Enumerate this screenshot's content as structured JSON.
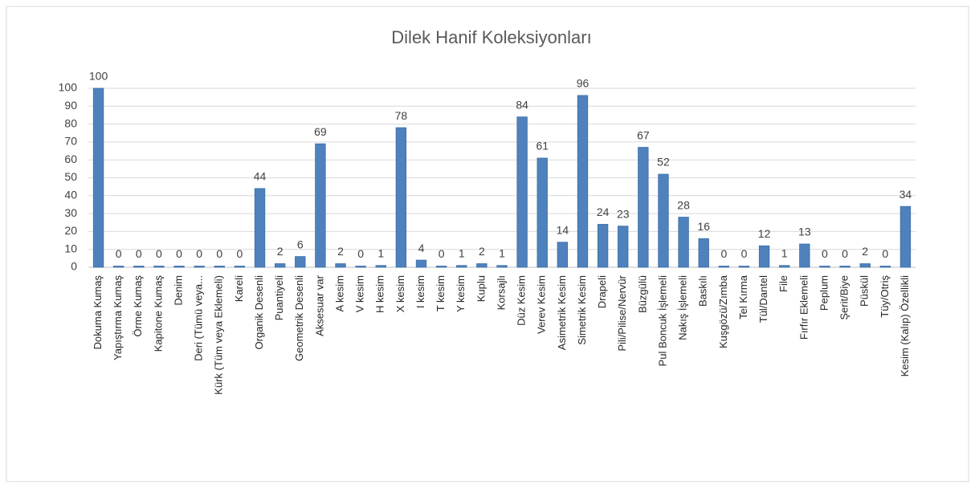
{
  "chart_data": {
    "type": "bar",
    "title": "Dilek Hanif Koleksiyonları",
    "categories": [
      "Dokuma Kumaş",
      "Yapıştırma Kumaş",
      "Örme Kumaş",
      "Kapitone Kumaş",
      "Denim",
      "Deri (Tümü veya...",
      "Kürk (Tüm veya Eklemeli)",
      "Kareli",
      "Organik Desenli",
      "Puantiyeli",
      "Geometrik Desenli",
      "Aksesuar var",
      "A kesim",
      "V kesim",
      "H kesim",
      "X kesim",
      "I kesim",
      "T kesim",
      "Y kesim",
      "Kuplu",
      "Korsajlı",
      "Düz Kesim",
      "Verev Kesim",
      "Asimetrik Kesim",
      "Simetrik Kesim",
      "Drapeli",
      "Pili/Pilise/Nervür",
      "Büzgülü",
      "Pul Boncuk İşlemeli",
      "Nakış İşlemeli",
      "Baskılı",
      "Kuşgözü/Zımba",
      "Tel Kırma",
      "Tül/Dantel",
      "File",
      "Fırfır Eklemeli",
      "Peplum",
      "Şerit/Biye",
      "Püskül",
      "Tüy/Otriş",
      "Kesim (Kalıp) Özellikli"
    ],
    "values": [
      100,
      0,
      0,
      0,
      0,
      0,
      0,
      0,
      44,
      2,
      6,
      69,
      2,
      0,
      1,
      78,
      4,
      0,
      1,
      2,
      1,
      84,
      61,
      14,
      96,
      24,
      23,
      67,
      52,
      28,
      16,
      0,
      0,
      12,
      1,
      13,
      0,
      0,
      2,
      0,
      34
    ],
    "color": "#4f81bd",
    "ylim": [
      0,
      100
    ],
    "yticks": [
      0,
      10,
      20,
      30,
      40,
      50,
      60,
      70,
      80,
      90,
      100
    ],
    "grid": true
  }
}
